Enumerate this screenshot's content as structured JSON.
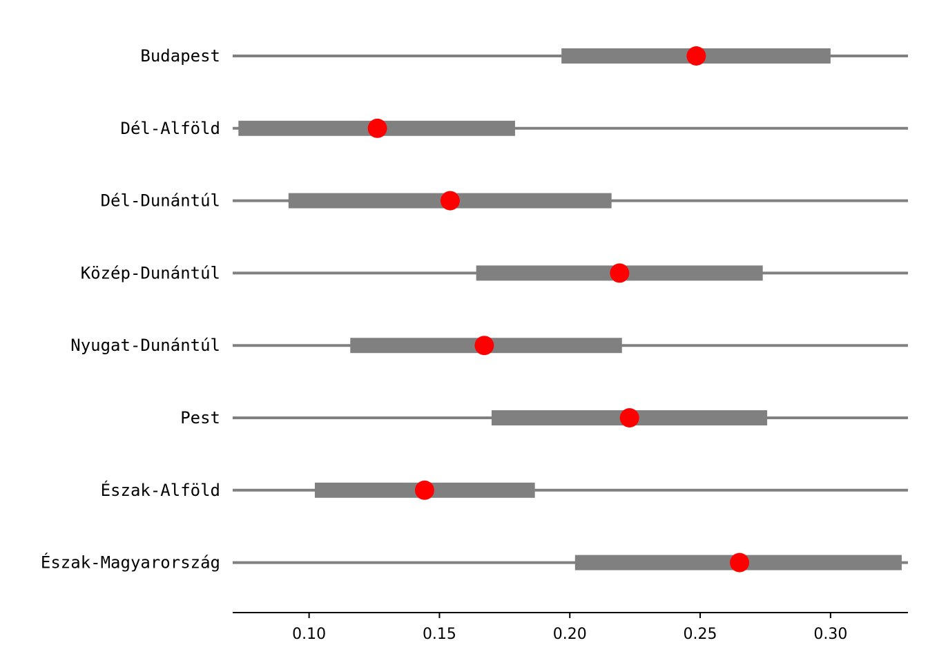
{
  "chart_data": {
    "type": "dot-interval",
    "categories": [
      "Budapest",
      "Dél-Alföld",
      "Dél-Dunántúl",
      "Közép-Dunántúl",
      "Nyugat-Dunántúl",
      "Pest",
      "Észak-Alföld",
      "Észak-Magyarország"
    ],
    "points": [
      0.2485,
      0.1262,
      0.1541,
      0.2191,
      0.1672,
      0.2229,
      0.1443,
      0.2651
    ],
    "interval_low": [
      0.1968,
      0.0729,
      0.0921,
      0.1641,
      0.1158,
      0.17,
      0.1022,
      0.202
    ],
    "interval_high": [
      0.3,
      0.179,
      0.216,
      0.274,
      0.22,
      0.2757,
      0.1866,
      0.3273
    ],
    "xlim": [
      0.0707,
      0.3297
    ],
    "xticks": [
      "0.10",
      "0.15",
      "0.20",
      "0.25",
      "0.30"
    ],
    "xtick_values": [
      0.1,
      0.15,
      0.2,
      0.25,
      0.3
    ],
    "title": "",
    "xlabel": "",
    "ylabel": "",
    "grid": false,
    "legend": "none",
    "colors": {
      "point": "#ff0000",
      "interval": "#808080",
      "baseline": "#808080",
      "axis": "#000000"
    }
  }
}
